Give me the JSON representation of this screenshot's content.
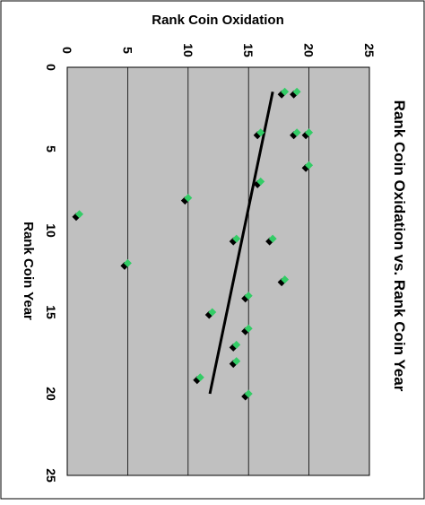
{
  "chart_data": {
    "type": "scatter",
    "title": "Rank Coin Oxidation vs. Rank Coin Year",
    "xlabel": "Rank Coin Year",
    "ylabel": "Rank Coin Oxidation",
    "xlim": [
      0,
      25
    ],
    "ylim": [
      0,
      25
    ],
    "x_ticks": [
      "0",
      "5",
      "10",
      "15",
      "20",
      "25"
    ],
    "y_ticks": [
      "0",
      "5",
      "10",
      "15",
      "20",
      "25"
    ],
    "grid": "major gridlines on oxidation axis",
    "orientation": "rotated 90 degrees clockwise",
    "plot_background": "#c0c0c0",
    "series": [
      {
        "marker": "diamond",
        "marker_color": "#33cc66",
        "shadow_color": "#000000",
        "x": [
          1.5,
          1.5,
          4,
          4,
          4,
          6,
          7,
          8,
          9,
          10.5,
          10.5,
          12,
          13,
          14,
          15,
          16,
          17,
          18,
          19,
          20
        ],
        "y": [
          18,
          19,
          16,
          19,
          20,
          20,
          16,
          10,
          1,
          14,
          17,
          5,
          18,
          15,
          12,
          15,
          14,
          14,
          11,
          15
        ]
      }
    ],
    "trendline": {
      "x": [
        1.5,
        20
      ],
      "y": [
        17,
        11.8
      ],
      "color": "#000000"
    }
  }
}
